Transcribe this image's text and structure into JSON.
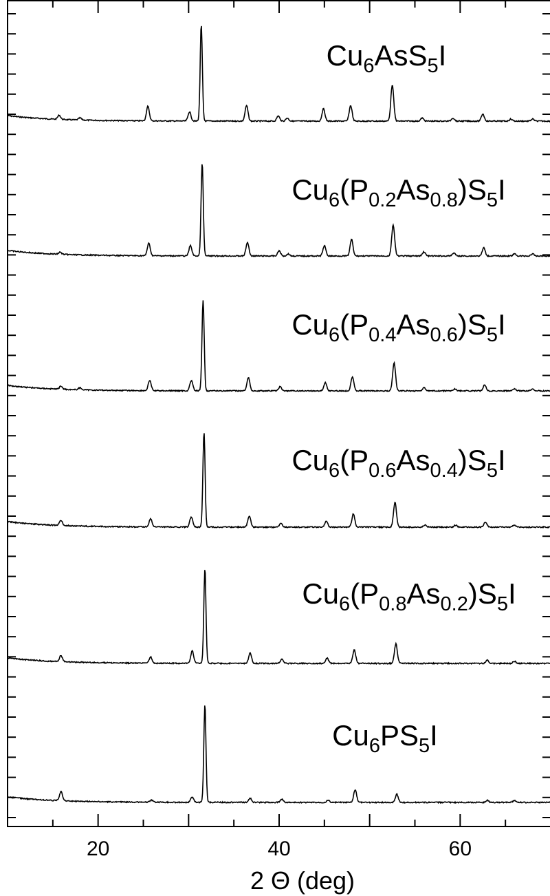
{
  "chart_data": {
    "type": "line",
    "xlabel": "2 Θ (deg)",
    "xlim": [
      10,
      70
    ],
    "xticks": [
      "20",
      "40",
      "60"
    ],
    "ylabel": "",
    "grid": false,
    "legend": "inline labels above each trace",
    "series": [
      {
        "name": "Cu6AsS5I",
        "label_parts": [
          [
            "Cu",
            ""
          ],
          [
            "6",
            "sub"
          ],
          [
            "AsS",
            ""
          ],
          [
            "5",
            "sub"
          ],
          [
            "I",
            ""
          ]
        ],
        "peaks": [
          [
            15.7,
            0.4
          ],
          [
            18,
            0.2
          ],
          [
            25.5,
            1.4
          ],
          [
            30.1,
            0.9
          ],
          [
            31.4,
            9.3
          ],
          [
            36.4,
            1.5
          ],
          [
            39.9,
            0.5
          ],
          [
            40.9,
            0.3
          ],
          [
            44.9,
            1.2
          ],
          [
            47.9,
            1.5
          ],
          [
            52.5,
            3.5
          ],
          [
            55.8,
            0.3
          ],
          [
            59.2,
            0.3
          ],
          [
            62.5,
            0.7
          ],
          [
            65.6,
            0.2
          ],
          [
            68,
            0.2
          ]
        ]
      },
      {
        "name": "Cu6(P0.2As0.8)S5I",
        "label_parts": [
          [
            "Cu",
            ""
          ],
          [
            "6",
            "sub"
          ],
          [
            "(P",
            ""
          ],
          [
            "0.2",
            "sub"
          ],
          [
            "As",
            ""
          ],
          [
            "0.8",
            "sub"
          ],
          [
            ")S",
            ""
          ],
          [
            "5",
            "sub"
          ],
          [
            "I",
            ""
          ]
        ],
        "peaks": [
          [
            15.8,
            0.2
          ],
          [
            25.6,
            1.2
          ],
          [
            30.2,
            1.0
          ],
          [
            31.5,
            9.0
          ],
          [
            36.5,
            1.3
          ],
          [
            40,
            0.5
          ],
          [
            41,
            0.2
          ],
          [
            45,
            1.0
          ],
          [
            48,
            1.6
          ],
          [
            52.6,
            3.0
          ],
          [
            56,
            0.4
          ],
          [
            59.3,
            0.3
          ],
          [
            62.6,
            0.8
          ],
          [
            66,
            0.2
          ],
          [
            68,
            0.2
          ]
        ]
      },
      {
        "name": "Cu6(P0.4As0.6)S5I",
        "label_parts": [
          [
            "Cu",
            ""
          ],
          [
            "6",
            "sub"
          ],
          [
            "(P",
            ""
          ],
          [
            "0.4",
            "sub"
          ],
          [
            "As",
            ""
          ],
          [
            "0.6",
            "sub"
          ],
          [
            ")S",
            ""
          ],
          [
            "5",
            "sub"
          ],
          [
            "I",
            ""
          ]
        ],
        "peaks": [
          [
            15.9,
            0.3
          ],
          [
            18,
            0.2
          ],
          [
            25.7,
            1.0
          ],
          [
            30.3,
            1.0
          ],
          [
            31.6,
            8.8
          ],
          [
            36.6,
            1.3
          ],
          [
            40.1,
            0.4
          ],
          [
            45.1,
            0.8
          ],
          [
            48.1,
            1.4
          ],
          [
            52.7,
            2.7
          ],
          [
            56,
            0.3
          ],
          [
            59.4,
            0.2
          ],
          [
            62.7,
            0.6
          ],
          [
            66,
            0.2
          ],
          [
            68,
            0.2
          ]
        ]
      },
      {
        "name": "Cu6(P0.6As0.4)S5I",
        "label_parts": [
          [
            "Cu",
            ""
          ],
          [
            "6",
            "sub"
          ],
          [
            "(P",
            ""
          ],
          [
            "0.6",
            "sub"
          ],
          [
            "As",
            ""
          ],
          [
            "0.4",
            "sub"
          ],
          [
            ")S",
            ""
          ],
          [
            "5",
            "sub"
          ],
          [
            "I",
            ""
          ]
        ],
        "peaks": [
          [
            15.9,
            0.5
          ],
          [
            25.8,
            0.8
          ],
          [
            30.3,
            1.0
          ],
          [
            31.7,
            9.2
          ],
          [
            36.7,
            1.1
          ],
          [
            40.2,
            0.4
          ],
          [
            45.2,
            0.6
          ],
          [
            48.2,
            1.3
          ],
          [
            52.8,
            2.4
          ],
          [
            56.1,
            0.2
          ],
          [
            59.5,
            0.2
          ],
          [
            62.8,
            0.5
          ],
          [
            66,
            0.2
          ]
        ]
      },
      {
        "name": "Cu6(P0.8As0.2)S5I",
        "label_parts": [
          [
            "Cu",
            ""
          ],
          [
            "6",
            "sub"
          ],
          [
            "(P",
            ""
          ],
          [
            "0.8",
            "sub"
          ],
          [
            "As",
            ""
          ],
          [
            "0.2",
            "sub"
          ],
          [
            ")S",
            ""
          ],
          [
            "5",
            "sub"
          ],
          [
            "I",
            ""
          ]
        ],
        "peaks": [
          [
            15.9,
            0.6
          ],
          [
            25.8,
            0.6
          ],
          [
            30.4,
            1.2
          ],
          [
            31.8,
            9.2
          ],
          [
            36.8,
            1.0
          ],
          [
            40.3,
            0.4
          ],
          [
            45.3,
            0.5
          ],
          [
            48.3,
            1.3
          ],
          [
            52.9,
            1.9
          ],
          [
            63,
            0.3
          ],
          [
            66,
            0.2
          ]
        ]
      },
      {
        "name": "Cu6PS5I",
        "label_parts": [
          [
            "Cu",
            ""
          ],
          [
            "6",
            "sub"
          ],
          [
            "PS",
            ""
          ],
          [
            "5",
            "sub"
          ],
          [
            "I",
            ""
          ]
        ],
        "peaks": [
          [
            15.9,
            0.9
          ],
          [
            25.9,
            0.2
          ],
          [
            30.4,
            0.5
          ],
          [
            31.8,
            9.5
          ],
          [
            36.8,
            0.4
          ],
          [
            40.3,
            0.3
          ],
          [
            45.4,
            0.2
          ],
          [
            48.4,
            1.2
          ],
          [
            53,
            0.8
          ],
          [
            63,
            0.2
          ],
          [
            66,
            0.2
          ]
        ]
      }
    ]
  }
}
